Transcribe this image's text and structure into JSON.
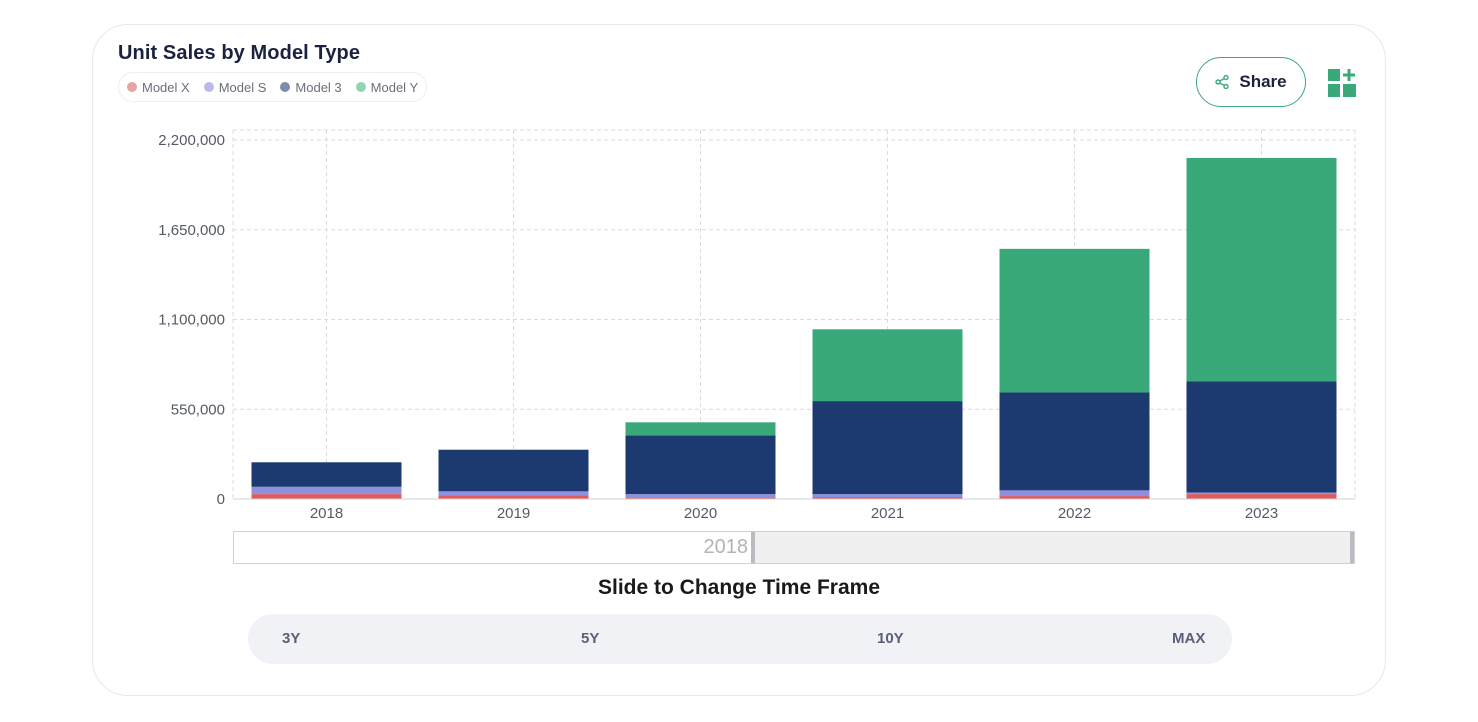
{
  "title": "Unit Sales by Model Type",
  "share_label": "Share",
  "slider": {
    "label": "2018"
  },
  "slide_caption": "Slide to Change Time Frame",
  "timeframes": [
    "3Y",
    "5Y",
    "10Y",
    "MAX"
  ],
  "icons": {
    "share": "share-icon",
    "add_widget": "add-widget-icon"
  },
  "colors": {
    "accent": "#3aa97a",
    "model_x": "#e05a5a",
    "model_s": "#8f8fe0",
    "model_3": "#1c3a70",
    "model_y": "#3aa97a"
  },
  "chart_data": {
    "type": "bar",
    "stacked": true,
    "categories": [
      "2018",
      "2019",
      "2020",
      "2021",
      "2022",
      "2023"
    ],
    "series": [
      {
        "name": "Model X",
        "color": "#e05a5a",
        "legend_color": "#e8a3a3",
        "values": [
          30000,
          22000,
          10000,
          12000,
          18000,
          30000
        ]
      },
      {
        "name": "Model S",
        "color": "#8f8fe0",
        "legend_color": "#b9b9ec",
        "values": [
          45000,
          25000,
          20000,
          18000,
          35000,
          10000
        ]
      },
      {
        "name": "Model 3",
        "color": "#1c3a70",
        "legend_color": "#7d8bad",
        "values": [
          150000,
          255000,
          360000,
          570000,
          600000,
          680000
        ]
      },
      {
        "name": "Model Y",
        "color": "#3aa97a",
        "legend_color": "#8fd4b3",
        "values": [
          0,
          0,
          80000,
          440000,
          880000,
          1370000
        ]
      }
    ],
    "ylim": [
      0,
      2200000
    ],
    "yticks": [
      0,
      550000,
      1100000,
      1650000,
      2200000
    ],
    "ytick_labels": [
      "0",
      "550,000",
      "1,100,000",
      "1,650,000",
      "2,200,000"
    ],
    "grid": true,
    "legend_position": "top-left"
  }
}
